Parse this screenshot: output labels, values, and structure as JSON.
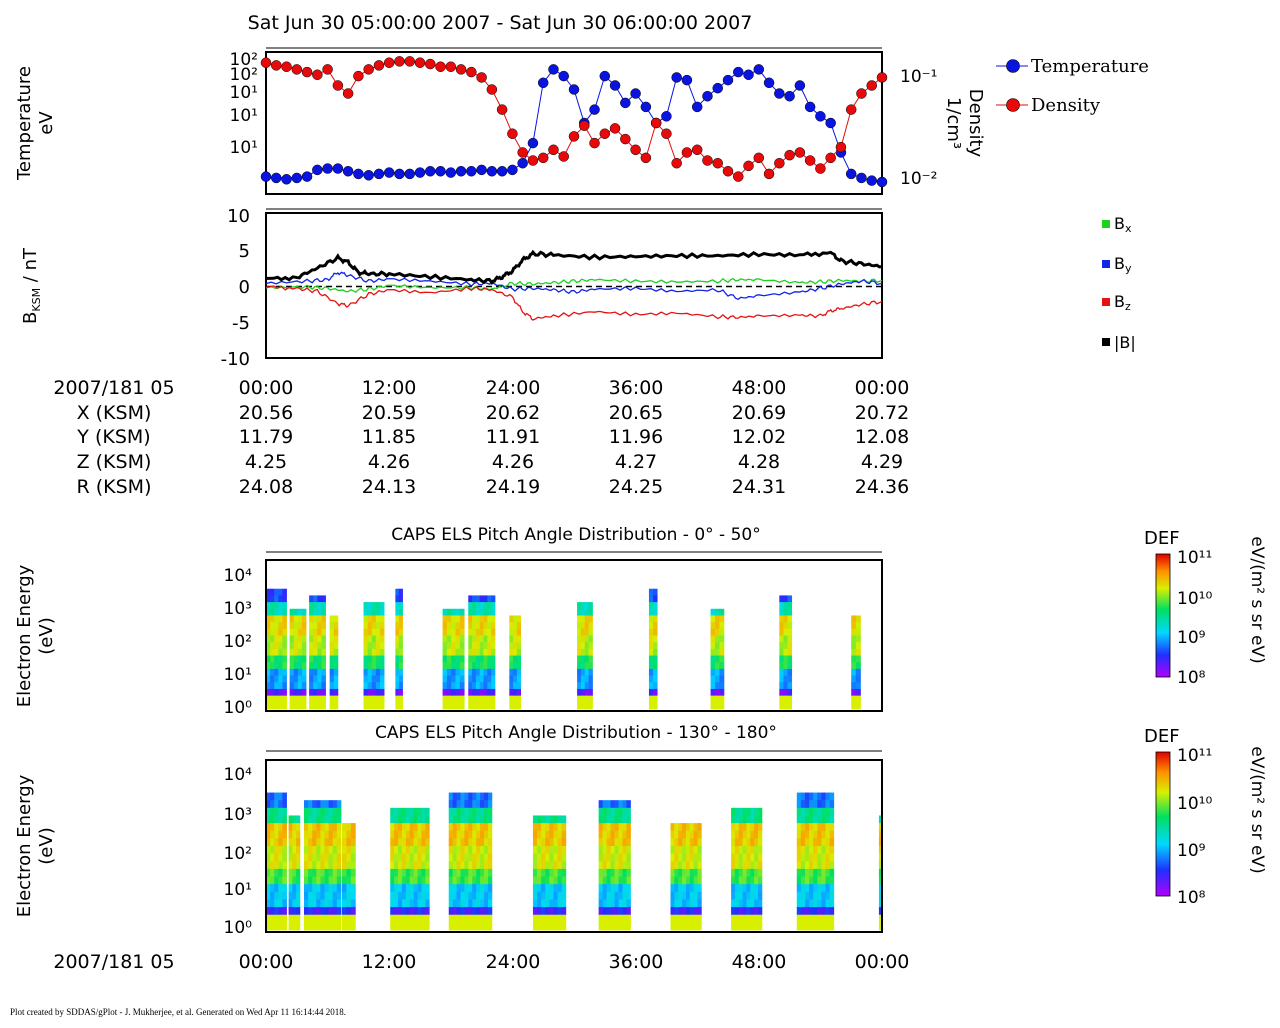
{
  "header": {
    "title": "Sat Jun 30 05:00:00 2007 - Sat Jun 30 06:00:00 2007"
  },
  "footer": {
    "text": "Plot created by SDDAS/gPlot - J. Mukherjee, et al.  Generated on Wed Apr 11 16:14:44 2018."
  },
  "ephemeris": {
    "time_label": "2007/181 05",
    "times": [
      "00:00",
      "12:00",
      "24:00",
      "36:00",
      "48:00",
      "00:00"
    ],
    "rows": [
      {
        "label": "X (KSM)",
        "values": [
          "20.56",
          "20.59",
          "20.62",
          "20.65",
          "20.69",
          "20.72"
        ]
      },
      {
        "label": "Y (KSM)",
        "values": [
          "11.79",
          "11.85",
          "11.91",
          "11.96",
          "12.02",
          "12.08"
        ]
      },
      {
        "label": "Z (KSM)",
        "values": [
          "4.25",
          "4.26",
          "4.26",
          "4.27",
          "4.28",
          "4.29"
        ]
      },
      {
        "label": "R (KSM)",
        "values": [
          "24.08",
          "24.13",
          "24.19",
          "24.25",
          "24.31",
          "24.36"
        ]
      }
    ]
  },
  "bottom_axis": {
    "time_label": "2007/181 05",
    "times": [
      "00:00",
      "12:00",
      "24:00",
      "36:00",
      "48:00",
      "00:00"
    ]
  },
  "colors": {
    "temperature": "#0a14e0",
    "density": "#e80a0a",
    "bx": "#18d21c",
    "by": "#1024e6",
    "bz": "#e41212",
    "btot": "#000000"
  },
  "chart_data": [
    {
      "type": "scatter",
      "panel": "plasma",
      "ylabel_left": [
        "Temperature",
        "eV"
      ],
      "ylabel_right": [
        "Density",
        "1/cm³"
      ],
      "left_ticks": [
        "10²",
        "10²",
        "10¹",
        "10¹",
        "10¹"
      ],
      "right_ticks": [
        "10⁻¹",
        "10⁻²"
      ],
      "x_range_min": [
        0,
        60
      ],
      "series": [
        {
          "name": "Temperature",
          "y_range": [
            0,
            1
          ],
          "x": [
            0,
            1,
            2,
            3,
            4,
            5,
            6,
            7,
            8,
            9,
            10,
            11,
            12,
            13,
            14,
            15,
            16,
            17,
            18,
            19,
            20,
            21,
            22,
            23,
            24,
            25,
            26,
            27,
            28,
            29,
            30,
            31,
            32,
            33,
            34,
            35,
            36,
            37,
            38,
            39,
            40,
            41,
            42,
            43,
            44,
            45,
            46,
            47,
            48,
            49,
            50,
            51,
            52,
            53,
            54,
            55,
            56,
            57,
            58,
            59,
            60
          ],
          "y": [
            0.1,
            0.09,
            0.08,
            0.09,
            0.1,
            0.15,
            0.16,
            0.16,
            0.14,
            0.12,
            0.11,
            0.12,
            0.13,
            0.12,
            0.12,
            0.13,
            0.14,
            0.14,
            0.13,
            0.14,
            0.14,
            0.15,
            0.14,
            0.14,
            0.15,
            0.2,
            0.35,
            0.8,
            0.9,
            0.85,
            0.75,
            0.5,
            0.6,
            0.85,
            0.78,
            0.65,
            0.72,
            0.62,
            0.5,
            0.55,
            0.84,
            0.82,
            0.62,
            0.7,
            0.76,
            0.82,
            0.88,
            0.86,
            0.9,
            0.8,
            0.72,
            0.7,
            0.78,
            0.62,
            0.55,
            0.5,
            0.28,
            0.12,
            0.09,
            0.07,
            0.06
          ]
        },
        {
          "name": "Density",
          "y_range": [
            0,
            1
          ],
          "x": [
            0,
            1,
            2,
            3,
            4,
            5,
            6,
            7,
            8,
            9,
            10,
            11,
            12,
            13,
            14,
            15,
            16,
            17,
            18,
            19,
            20,
            21,
            22,
            23,
            24,
            25,
            26,
            27,
            28,
            29,
            30,
            31,
            32,
            33,
            34,
            35,
            36,
            37,
            38,
            39,
            40,
            41,
            42,
            43,
            44,
            45,
            46,
            47,
            48,
            49,
            50,
            51,
            52,
            53,
            54,
            55,
            56,
            57,
            58,
            59,
            60
          ],
          "y": [
            0.95,
            0.93,
            0.92,
            0.9,
            0.88,
            0.86,
            0.9,
            0.78,
            0.72,
            0.85,
            0.9,
            0.93,
            0.95,
            0.96,
            0.96,
            0.95,
            0.94,
            0.92,
            0.92,
            0.9,
            0.88,
            0.84,
            0.75,
            0.6,
            0.42,
            0.28,
            0.22,
            0.24,
            0.3,
            0.25,
            0.4,
            0.48,
            0.35,
            0.42,
            0.46,
            0.38,
            0.3,
            0.24,
            0.5,
            0.42,
            0.2,
            0.28,
            0.3,
            0.22,
            0.2,
            0.14,
            0.1,
            0.18,
            0.24,
            0.12,
            0.2,
            0.26,
            0.28,
            0.22,
            0.16,
            0.24,
            0.32,
            0.6,
            0.72,
            0.78,
            0.84
          ]
        }
      ]
    },
    {
      "type": "line",
      "panel": "magnetic_field",
      "ylabel": "B_KSM / nT",
      "ylim": [
        -10,
        10
      ],
      "yticks": [
        "10",
        "5",
        "0",
        "-5",
        "-10"
      ],
      "x_range_min": [
        0,
        60
      ],
      "legend": [
        {
          "key": "bx",
          "label": "Bx"
        },
        {
          "key": "by",
          "label": "By"
        },
        {
          "key": "bz",
          "label": "Bz"
        },
        {
          "key": "btot",
          "label": "|B|"
        }
      ],
      "series": [
        {
          "name": "Bx",
          "key": "bx",
          "x": [
            0,
            4,
            6,
            8,
            10,
            12,
            16,
            20,
            22,
            24,
            26,
            28,
            30,
            32,
            36,
            40,
            44,
            46,
            48,
            52,
            54,
            56,
            58,
            60
          ],
          "y": [
            -0.3,
            -0.2,
            -0.4,
            -0.8,
            -0.5,
            0,
            -0.3,
            -0.3,
            -0.5,
            0.3,
            0.2,
            0.4,
            0.6,
            0.8,
            0.6,
            0.5,
            0.6,
            0.8,
            0.8,
            0.4,
            0.5,
            0.7,
            0.6,
            0.7
          ]
        },
        {
          "name": "By",
          "key": "by",
          "x": [
            0,
            4,
            6,
            7,
            8,
            10,
            12,
            16,
            20,
            22,
            24,
            26,
            28,
            30,
            32,
            36,
            40,
            44,
            46,
            48,
            52,
            54,
            56,
            58,
            60
          ],
          "y": [
            0.3,
            0.6,
            0.8,
            1.8,
            1.4,
            0.6,
            0.9,
            0.6,
            0.2,
            0.3,
            -0.5,
            -0.4,
            -0.6,
            -0.9,
            -0.5,
            -0.4,
            -0.8,
            -0.6,
            -1.8,
            -1.4,
            -0.9,
            -0.4,
            0.2,
            0.6,
            0.3
          ]
        },
        {
          "name": "Bz",
          "key": "bz",
          "x": [
            0,
            3,
            5,
            7,
            8,
            10,
            12,
            16,
            20,
            22,
            24,
            25,
            26,
            28,
            32,
            36,
            40,
            44,
            46,
            48,
            52,
            54,
            55,
            56,
            58,
            60
          ],
          "y": [
            -0.2,
            -0.4,
            -0.8,
            -2.5,
            -2.8,
            -1.2,
            -0.6,
            -1.0,
            -0.4,
            -0.6,
            -1.6,
            -3.6,
            -4.6,
            -4.2,
            -3.6,
            -4.0,
            -3.8,
            -4.3,
            -4.4,
            -4.2,
            -4.1,
            -4.2,
            -3.5,
            -3.2,
            -2.6,
            -2.2
          ]
        },
        {
          "name": "|B|",
          "key": "btot",
          "x": [
            0,
            3,
            5,
            7,
            8,
            9,
            10,
            12,
            16,
            20,
            22,
            23,
            24,
            25,
            26,
            28,
            32,
            36,
            40,
            44,
            48,
            52,
            55,
            56,
            58,
            60
          ],
          "y": [
            0.9,
            1.1,
            2.4,
            3.8,
            3.2,
            1.8,
            1.6,
            1.6,
            1.2,
            0.8,
            0.6,
            1.2,
            2.0,
            3.5,
            4.4,
            4.2,
            3.9,
            4.0,
            4.1,
            4.1,
            4.3,
            4.2,
            4.5,
            3.4,
            3.0,
            2.6
          ]
        }
      ]
    },
    {
      "type": "heatmap",
      "panel": "pad_0_50",
      "title": "CAPS ELS Pitch Angle Distribution - 0° - 50°",
      "ylabel": [
        "Electron Energy",
        "(eV)"
      ],
      "yticks": [
        "10⁴",
        "10³",
        "10²",
        "10¹",
        "10⁰"
      ],
      "colorbar": {
        "label": "DEF",
        "units": "eV/(m² s sr eV)",
        "ticks": [
          "10¹¹",
          "10¹⁰",
          "10⁹",
          "10⁸"
        ]
      },
      "blocks_min": [
        [
          0,
          2
        ],
        [
          2.3,
          3.9
        ],
        [
          4.2,
          5.8
        ],
        [
          6.2,
          7.0
        ],
        [
          9.5,
          11.5
        ],
        [
          12.6,
          13.3
        ],
        [
          17.2,
          19.3
        ],
        [
          19.7,
          22.3
        ],
        [
          23.7,
          24.8
        ],
        [
          30.3,
          31.8
        ],
        [
          37.3,
          38.1
        ],
        [
          43.3,
          44.6
        ],
        [
          50.0,
          51.2
        ],
        [
          57.0,
          57.9
        ]
      ],
      "block_profile": [
        0.05,
        0.2,
        0.45,
        0.75,
        0.7,
        0.55,
        0.3,
        0.1
      ]
    },
    {
      "type": "heatmap",
      "panel": "pad_130_180",
      "title": "CAPS ELS Pitch Angle Distribution - 130° - 180°",
      "ylabel": [
        "Electron Energy",
        "(eV)"
      ],
      "yticks": [
        "10⁴",
        "10³",
        "10²",
        "10¹",
        "10⁰"
      ],
      "colorbar": {
        "label": "DEF",
        "units": "eV/(m² s sr eV)",
        "ticks": [
          "10¹¹",
          "10¹⁰",
          "10⁹",
          "10⁸"
        ]
      },
      "blocks_min": [
        [
          0,
          2
        ],
        [
          2.2,
          3.3
        ],
        [
          3.7,
          7.3
        ],
        [
          7.4,
          8.7
        ],
        [
          12.1,
          15.9
        ],
        [
          17.8,
          22.0
        ],
        [
          26.0,
          29.2
        ],
        [
          32.4,
          35.5
        ],
        [
          39.4,
          42.4
        ],
        [
          45.3,
          48.3
        ],
        [
          51.7,
          55.3
        ],
        [
          59.7,
          60
        ]
      ],
      "block_profile": [
        0.08,
        0.25,
        0.5,
        0.78,
        0.72,
        0.6,
        0.35,
        0.15
      ]
    }
  ]
}
